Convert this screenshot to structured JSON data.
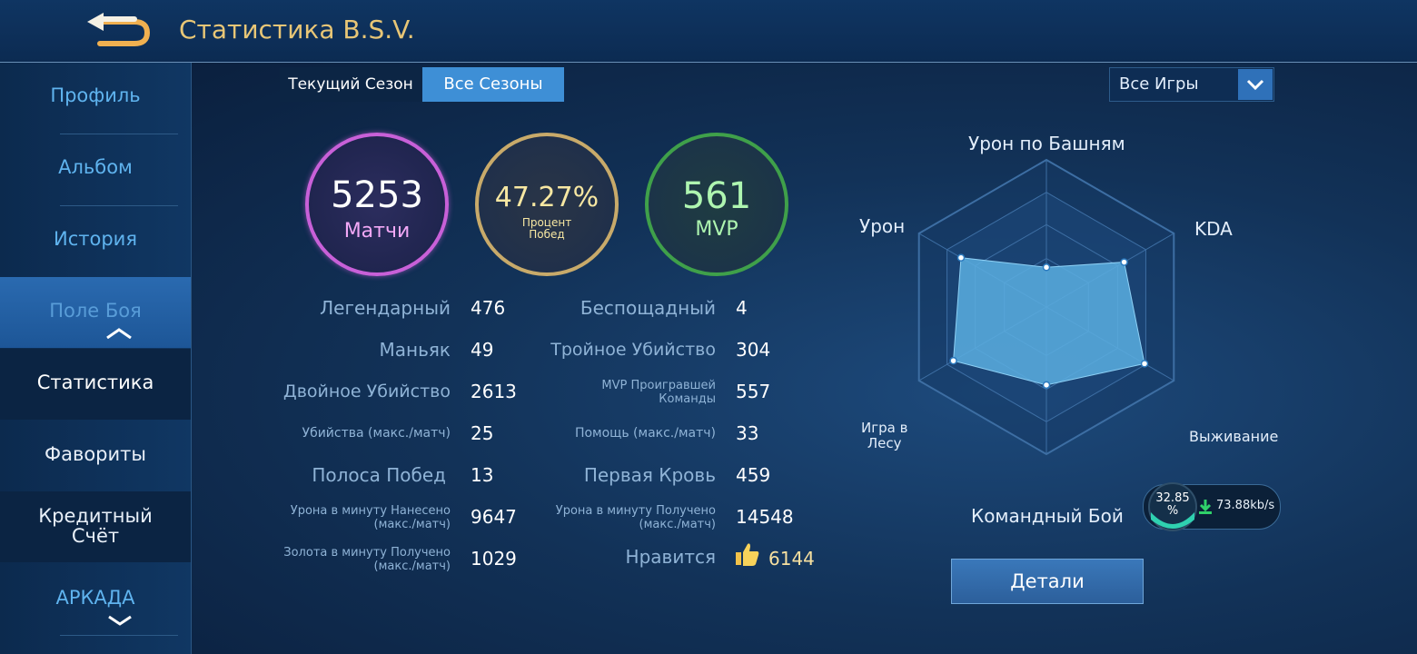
{
  "header": {
    "title": "Статистика B.S.V."
  },
  "sidebar": {
    "items": [
      {
        "label": "Профиль"
      },
      {
        "label": "Альбом"
      },
      {
        "label": "История"
      },
      {
        "label": "Поле Боя"
      }
    ],
    "sub_items": [
      {
        "label": "Статистика"
      },
      {
        "label": "Фавориты"
      },
      {
        "label": "Кредитный"
      },
      {
        "label": "Счёт"
      }
    ],
    "arcade": {
      "label": "АРКАДА"
    }
  },
  "tabs": {
    "current": "Текущий Сезон",
    "all": "Все Сезоны"
  },
  "filter": {
    "selected": "Все Игры"
  },
  "summary": {
    "matches": {
      "value": "5253",
      "label": "Матчи"
    },
    "winrate": {
      "value": "47.27%",
      "label_line1": "Процент",
      "label_line2": "Побед"
    },
    "mvp": {
      "value": "561",
      "label": "MVP"
    }
  },
  "stats_left": [
    {
      "label": "Легендарный",
      "value": "476"
    },
    {
      "label": "Маньяк",
      "value": "49"
    },
    {
      "label": "Двойное Убийство",
      "value": "2613"
    },
    {
      "label": "Убийства (макс./матч)",
      "value": "25"
    },
    {
      "label": "Полоса Побед",
      "value": "13"
    },
    {
      "label_line1": "Урона в минуту Нанесено",
      "label_line2": "(макс./матч)",
      "value": "9647"
    },
    {
      "label_line1": "Золота в минуту Получено",
      "label_line2": "(макс./матч)",
      "value": "1029"
    }
  ],
  "stats_right": [
    {
      "label": "Беспощадный",
      "value": "4"
    },
    {
      "label": "Тройное Убийство",
      "value": "304"
    },
    {
      "label_line1": "MVP Проигравшей",
      "label_line2": "Команды",
      "value": "557"
    },
    {
      "label": "Помощь (макс./матч)",
      "value": "33"
    },
    {
      "label": "Первая Кровь",
      "value": "459"
    },
    {
      "label_line1": "Урона в минуту Получено",
      "label_line2": "(макс./матч)",
      "value": "14548"
    },
    {
      "label": "Нравится",
      "value": "6144"
    }
  ],
  "radar": {
    "axes": [
      {
        "label": "Урон по Башням",
        "value": 0.27
      },
      {
        "label": "KDA",
        "value": 0.61
      },
      {
        "label": "Выживание",
        "value": 0.77
      },
      {
        "label": "Командный Бой",
        "value": 0.53
      },
      {
        "label_line1": "Игра в",
        "label_line2": "Лесу",
        "value": 0.73
      },
      {
        "label": "Урон",
        "value": 0.67
      }
    ],
    "fill_color": "#5aaee0"
  },
  "details_button": {
    "label": "Детали"
  },
  "network_widget": {
    "percent_line1": "32.85",
    "percent_line2": "%",
    "speed": "73.88kb/s"
  },
  "colors": {
    "accent_gold": "#e8c676",
    "matches_ring": "#c860d8",
    "winrate_ring": "#c8aa6a",
    "mvp_ring": "#3fa04a"
  }
}
